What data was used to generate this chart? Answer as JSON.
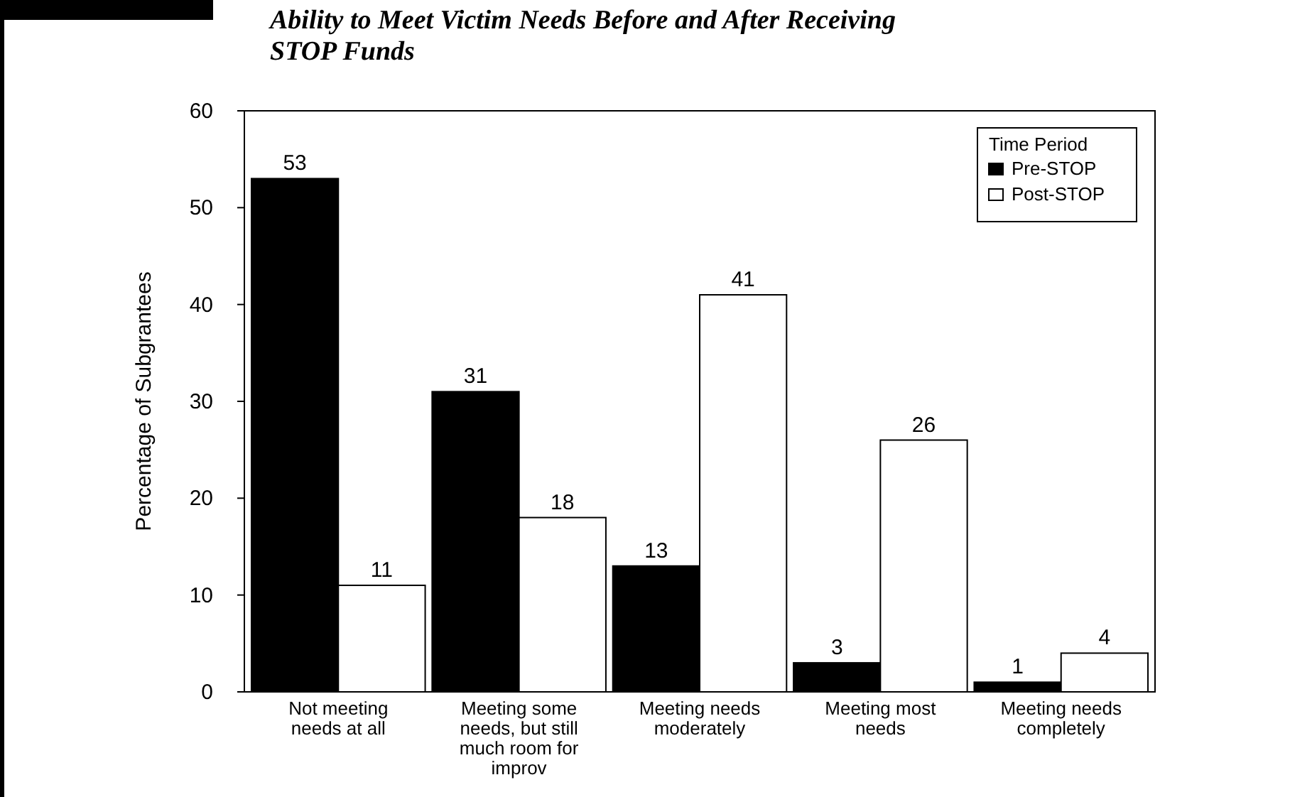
{
  "chart_data": {
    "type": "bar",
    "title": "Ability to Meet Victim Needs Before and After Receiving STOP Funds",
    "ylabel": "Percentage of Subgrantees",
    "legend_title": "Time Period",
    "categories": [
      "Not meeting needs at all",
      "Meeting some needs, but still much room for improv",
      "Meeting needs moderately",
      "Meeting most needs",
      "Meeting needs completely"
    ],
    "series": [
      {
        "name": "Pre-STOP",
        "color": "#000000",
        "values": [
          53,
          31,
          13,
          3,
          1
        ]
      },
      {
        "name": "Post-STOP",
        "color": "#ffffff",
        "values": [
          11,
          18,
          41,
          26,
          4
        ]
      }
    ],
    "ylim": [
      0,
      60
    ],
    "yticks": [
      0,
      10,
      20,
      30,
      40,
      50,
      60
    ],
    "data_labels": true,
    "legend": "top right"
  }
}
